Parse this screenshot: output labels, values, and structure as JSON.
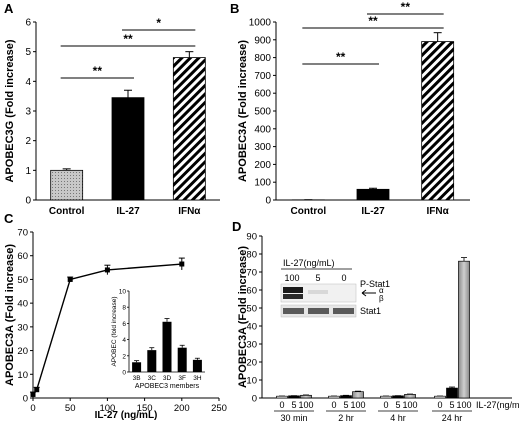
{
  "panels": {
    "A": {
      "letter": "A"
    },
    "B": {
      "letter": "B"
    },
    "C": {
      "letter": "C"
    },
    "D": {
      "letter": "D"
    }
  },
  "chart_data": [
    {
      "panel": "A",
      "type": "bar",
      "ylabel": "APOBEC3G (Fold increase)",
      "categories": [
        "Control",
        "IL-27",
        "IFNα"
      ],
      "values": [
        1.0,
        3.45,
        4.8
      ],
      "errors": [
        0.05,
        0.25,
        0.2
      ],
      "fills": [
        "dotted-gray",
        "black",
        "hatched"
      ],
      "ylim": [
        0,
        6
      ],
      "yticks": [
        "0",
        "1",
        "2",
        "3",
        "4",
        "5",
        "6"
      ],
      "significance": [
        {
          "from": 0,
          "to": 1,
          "label": "**"
        },
        {
          "from": 0,
          "to": 2,
          "label": "**"
        },
        {
          "from": 1,
          "to": 2,
          "label": "*"
        }
      ]
    },
    {
      "panel": "B",
      "type": "bar",
      "ylabel": "APOBEC3A (Fold increase)",
      "categories": [
        "Control",
        "IL-27",
        "IFNα"
      ],
      "values": [
        1,
        60,
        890
      ],
      "errors": [
        0.5,
        6,
        50
      ],
      "fills": [
        "dotted-gray",
        "black",
        "hatched"
      ],
      "ylim": [
        0,
        1000
      ],
      "yticks": [
        "0",
        "100",
        "200",
        "300",
        "400",
        "500",
        "600",
        "700",
        "800",
        "900",
        "1000"
      ],
      "significance": [
        {
          "from": 0,
          "to": 1,
          "label": "**"
        },
        {
          "from": 0,
          "to": 2,
          "label": "**"
        },
        {
          "from": 1,
          "to": 2,
          "label": "**"
        }
      ]
    },
    {
      "panel": "C",
      "type": "line",
      "ylabel": "APOBEC3A (Fold increase)",
      "xlabel": "IL-27 (ng/mL)",
      "x": [
        0,
        5,
        50,
        100,
        200
      ],
      "y": [
        1.5,
        3.5,
        50,
        54,
        56.5
      ],
      "errors": [
        1.0,
        1.0,
        1.0,
        2.0,
        2.5
      ],
      "xlim": [
        0,
        250
      ],
      "ylim": [
        0,
        70
      ],
      "xticks": [
        "0",
        "50",
        "100",
        "150",
        "200",
        "250"
      ],
      "yticks": [
        "0",
        "10",
        "20",
        "30",
        "40",
        "50",
        "60",
        "70"
      ],
      "inset": {
        "type": "bar",
        "ylabel": "APOBEC (fold increase)",
        "xlabel": "APOBEC3 members",
        "categories": [
          "3B",
          "3C",
          "3D",
          "3F",
          "3H"
        ],
        "values": [
          1.2,
          2.7,
          6.2,
          3.0,
          1.5
        ],
        "errors": [
          0.2,
          0.3,
          0.4,
          0.3,
          0.2
        ],
        "ylim": [
          0,
          10
        ],
        "yticks": [
          "0",
          "2",
          "4",
          "6",
          "8",
          "10"
        ]
      }
    },
    {
      "panel": "D",
      "type": "bar",
      "ylabel": "APOBEC3A (Fold increase)",
      "xunit_label": "IL-27(ng/mL)",
      "groups": [
        "30 min",
        "2 hr",
        "4 hr",
        "24 hr"
      ],
      "subcategories": [
        "0",
        "5",
        "100"
      ],
      "values": [
        [
          1.0,
          1.2,
          1.5
        ],
        [
          1.0,
          1.3,
          3.5
        ],
        [
          1.0,
          1.2,
          2.0
        ],
        [
          1.0,
          5.5,
          76.0
        ]
      ],
      "errors": [
        [
          0.1,
          0.1,
          0.2
        ],
        [
          0.1,
          0.2,
          0.3
        ],
        [
          0.1,
          0.1,
          0.2
        ],
        [
          0.1,
          0.6,
          2.0
        ]
      ],
      "ylim": [
        0,
        90
      ],
      "yticks": [
        "0",
        "10",
        "20",
        "30",
        "40",
        "50",
        "60",
        "70",
        "80",
        "90"
      ],
      "inset_blot": {
        "title": "IL-27(ng/mL)",
        "lanes": [
          "100",
          "5",
          "0"
        ],
        "rows": [
          "P-Stat1",
          "Stat1"
        ],
        "markers": [
          "α",
          "β"
        ]
      }
    }
  ]
}
